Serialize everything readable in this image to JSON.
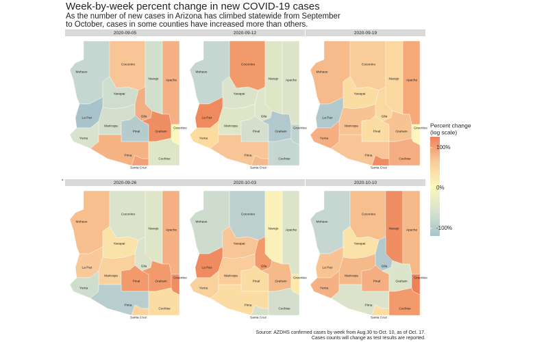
{
  "title": "Week-by-week percent change in new COVID-19 cases",
  "subtitle": [
    "As the number of new cases in Arizona has climbed statewide from September",
    "to October, cases in some counties have increased more than others."
  ],
  "counties": [
    "Mohave",
    "Coconino",
    "Navajo",
    "Apache",
    "Yavapai",
    "Gila",
    "La Paz",
    "Maricopa",
    "Pinal",
    "Graham",
    "Greenlee",
    "Yuma",
    "Pima",
    "Santa Cruz",
    "Cochise"
  ],
  "panels": [
    {
      "date": "2020-09-05",
      "colors": [
        "#c5d7d0",
        "#f8c596",
        "#d3dfcd",
        "#f5b083",
        "#cfddcc",
        "#f3ad82",
        "#a9c3cb",
        "#d3dfcc",
        "#b5cbcc",
        "#ef8e62",
        "#fbf7bb",
        "#d8e2cc",
        "#f5b384",
        "#f1a173",
        "#dfe6c8"
      ]
    },
    {
      "date": "2020-09-12",
      "colors": [
        "#c5d7d0",
        "#f39a6c",
        "#dfe6c8",
        "#dce4c9",
        "#dbe4cb",
        "#dde5ca",
        "#ef8a5f",
        "#dfe6c8",
        "#d3dfcc",
        "#b1c8cc",
        "#c1d3ce",
        "#fbdc9e",
        "#f8c596",
        "#f6b98a",
        "#c5d7d0"
      ]
    },
    {
      "date": "2020-09-19",
      "colors": [
        "#f6ba8b",
        "#f9cc9a",
        "#fbd8a0",
        "#f5a878",
        "#fbdca3",
        "#fbd8a0",
        "#b1c8cc",
        "#f8c393",
        "#fbdca3",
        "#f8c393",
        "#fdf6bc",
        "#f4ae82",
        "#f8c596",
        "#f08a60",
        "#f4ae82"
      ]
    },
    {
      "date": "2020-09-26",
      "colors": [
        "#f7be8e",
        "#dbe4cb",
        "#dfe6c8",
        "#f5b083",
        "#fbe2a8",
        "#dbe4cb",
        "#f9c99a",
        "#f9d19c",
        "#f39a6c",
        "#f39a6c",
        "#f08e63",
        "#cfddcc",
        "#b8cdcd",
        "#fbd39e",
        "#fbdca3"
      ]
    },
    {
      "date": "2020-10-03",
      "colors": [
        "#cddccd",
        "#bcd0ce",
        "#faf1b8",
        "#dce4c9",
        "#f8c596",
        "#f39a6c",
        "#f08a60",
        "#f9cc9a",
        "#fbdca3",
        "#f6b98a",
        "#fbe8ab",
        "#f9d19c",
        "#fbdca3",
        "#d6e1cb",
        "#d3dfcc"
      ]
    },
    {
      "date": "2020-10-10",
      "colors": [
        "#c5d7d0",
        "#f7be8e",
        "#f08e63",
        "#f6b98a",
        "#fbe2a8",
        "#b1c8cc",
        "#f8c393",
        "#f6b98a",
        "#f4ae82",
        "#dce4c9",
        "#ee8058",
        "#f5b083",
        "#dbe4cb",
        "#fbdca3",
        "#f39a6c"
      ]
    }
  ],
  "legend": {
    "title": [
      "Percent change",
      "(log scale)"
    ],
    "colors": [
      "#ee8058",
      "#f9cc9a",
      "#fbf7bb",
      "#d6e2cf",
      "#a8c4cc"
    ],
    "lim": [
      -119,
      127
    ],
    "ticks": [
      {
        "value": 100,
        "label": "100%"
      },
      {
        "value": 0,
        "label": "0%"
      },
      {
        "value": -100,
        "label": "-100%"
      }
    ]
  },
  "stray_labels": [
    "a",
    "a"
  ],
  "source": [
    "Source: AZDHS confirmed cases by week from Aug.30 to Oct. 10, as of Oct. 17.",
    "Cases counts will change as test results are reported."
  ]
}
